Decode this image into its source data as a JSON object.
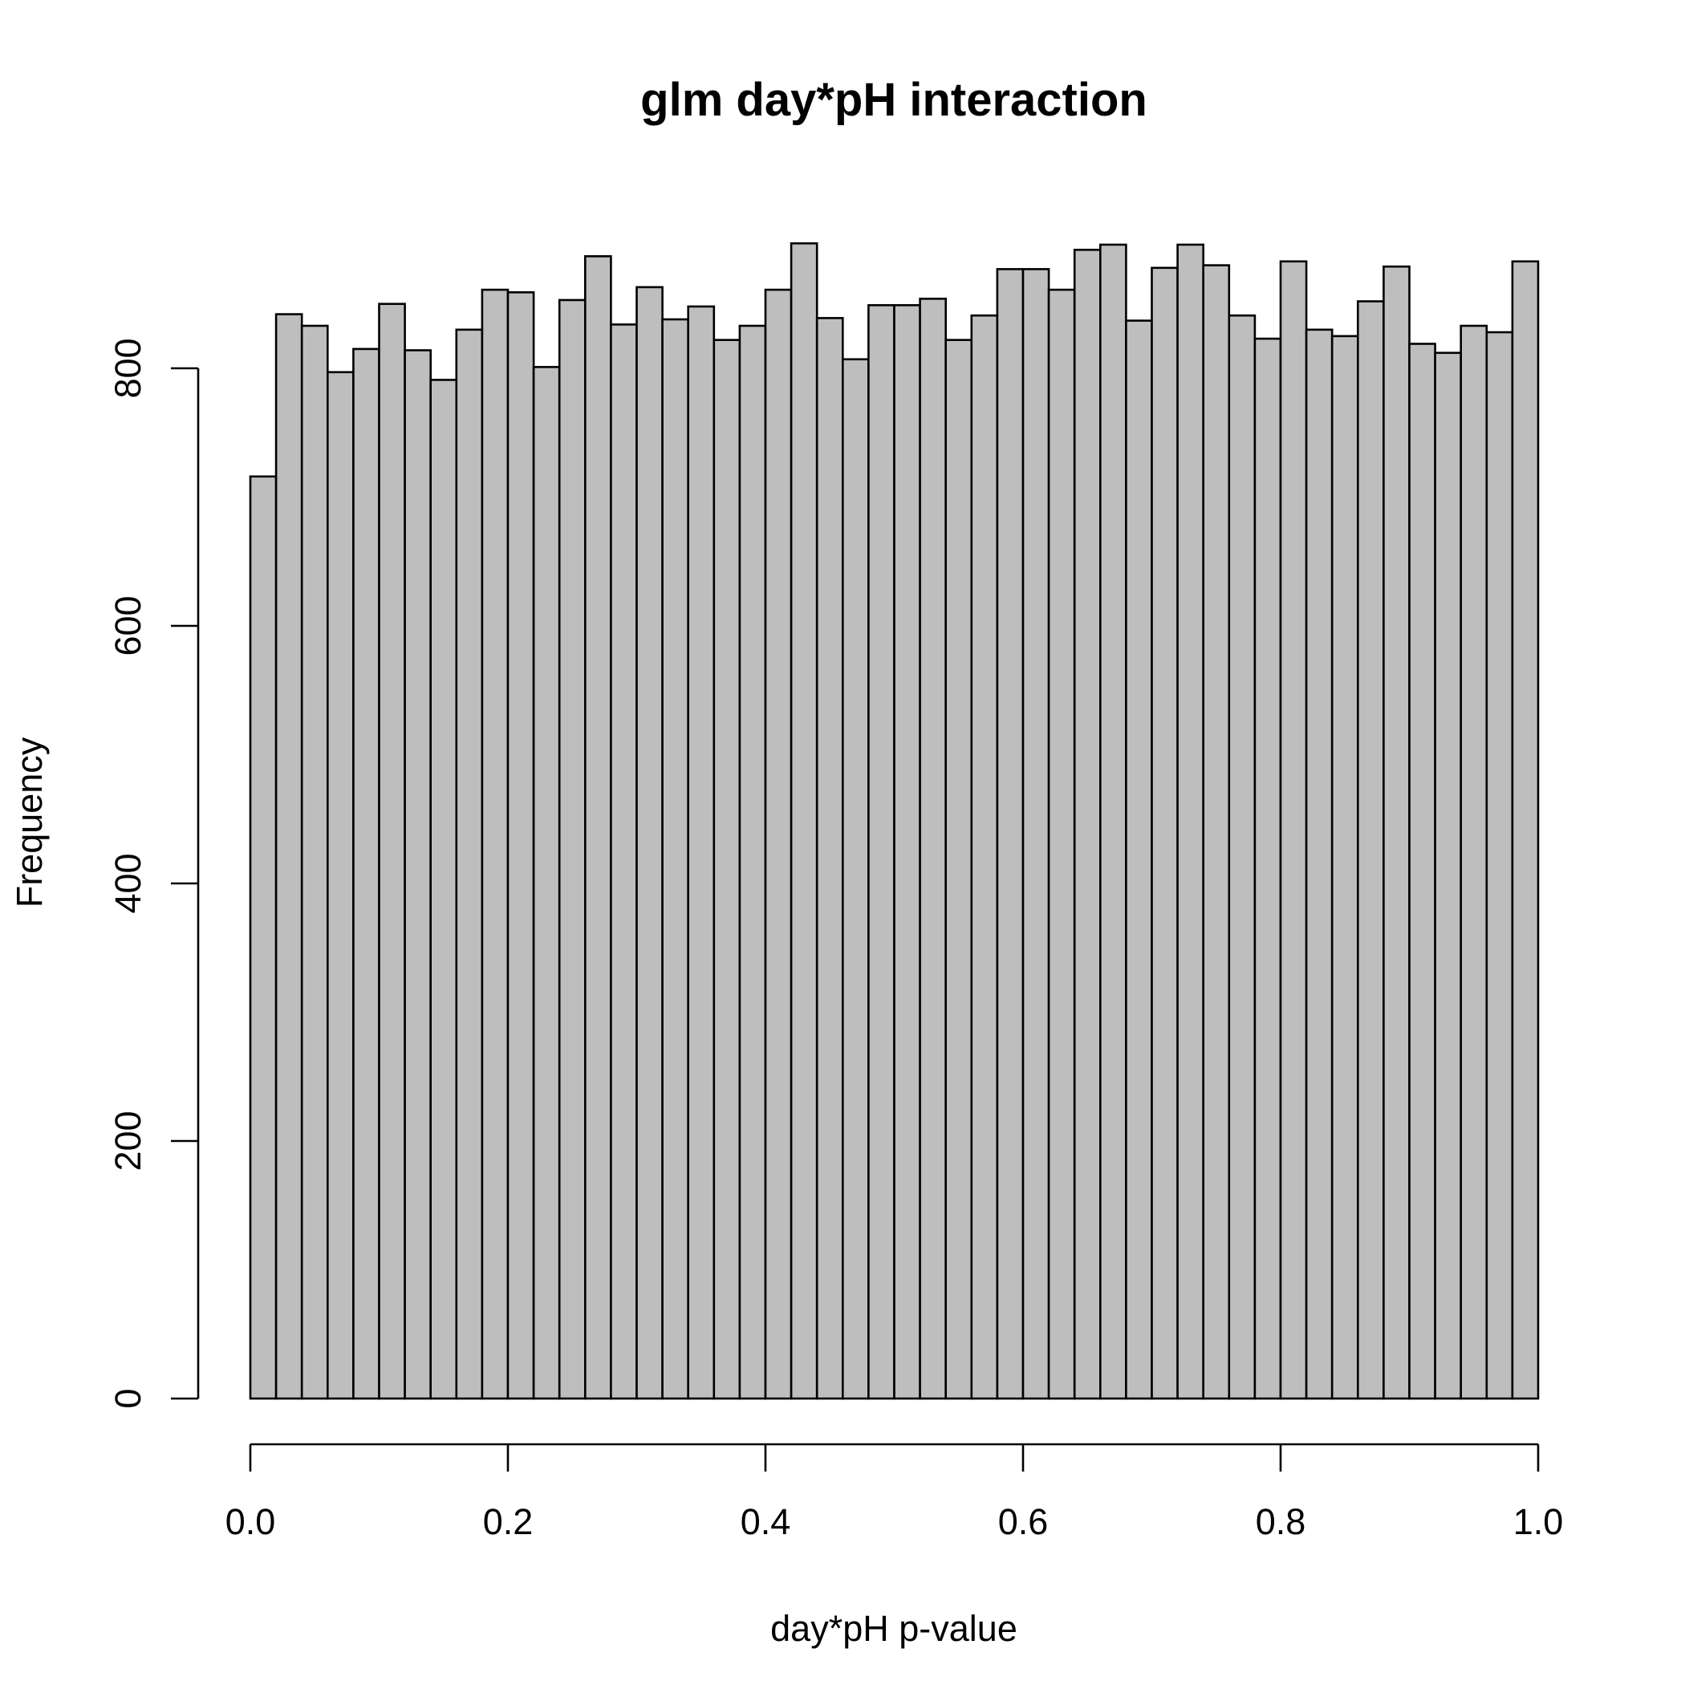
{
  "chart_data": {
    "type": "bar",
    "subtype": "histogram",
    "title": "glm day*pH interaction",
    "xlabel": "day*pH p-value",
    "ylabel": "Frequency",
    "bin_width": 0.02,
    "xlim": [
      0,
      1
    ],
    "ylim": [
      0,
      800
    ],
    "x_ticks": [
      {
        "value": 0.0,
        "label": "0.0"
      },
      {
        "value": 0.2,
        "label": "0.2"
      },
      {
        "value": 0.4,
        "label": "0.4"
      },
      {
        "value": 0.6,
        "label": "0.6"
      },
      {
        "value": 0.8,
        "label": "0.8"
      },
      {
        "value": 1.0,
        "label": "1.0"
      }
    ],
    "y_ticks": [
      {
        "value": 0,
        "label": "0"
      },
      {
        "value": 200,
        "label": "200"
      },
      {
        "value": 400,
        "label": "400"
      },
      {
        "value": 600,
        "label": "600"
      },
      {
        "value": 800,
        "label": "800"
      }
    ],
    "bar_fill": "#bebebe",
    "bar_edge": "#000000",
    "grid": false,
    "bins_start": [
      0.0,
      0.02,
      0.04,
      0.06,
      0.08,
      0.1,
      0.12,
      0.14,
      0.16,
      0.18,
      0.2,
      0.22,
      0.24,
      0.26,
      0.28,
      0.3,
      0.32,
      0.34,
      0.36,
      0.38,
      0.4,
      0.42,
      0.44,
      0.46,
      0.48,
      0.5,
      0.52,
      0.54,
      0.56,
      0.58,
      0.6,
      0.62,
      0.64,
      0.66,
      0.68,
      0.7,
      0.72,
      0.74,
      0.76,
      0.78,
      0.8,
      0.82,
      0.84,
      0.86,
      0.88,
      0.9,
      0.92,
      0.94,
      0.96,
      0.98
    ],
    "values": [
      716,
      842,
      833,
      797,
      815,
      850,
      814,
      791,
      830,
      861,
      859,
      801,
      853,
      887,
      834,
      863,
      838,
      848,
      822,
      833,
      861,
      897,
      839,
      807,
      849,
      849,
      854,
      822,
      841,
      877,
      877,
      861,
      892,
      896,
      837,
      878,
      896,
      880,
      841,
      823,
      883,
      830,
      825,
      852,
      879,
      819,
      812,
      833,
      828,
      883
    ]
  }
}
